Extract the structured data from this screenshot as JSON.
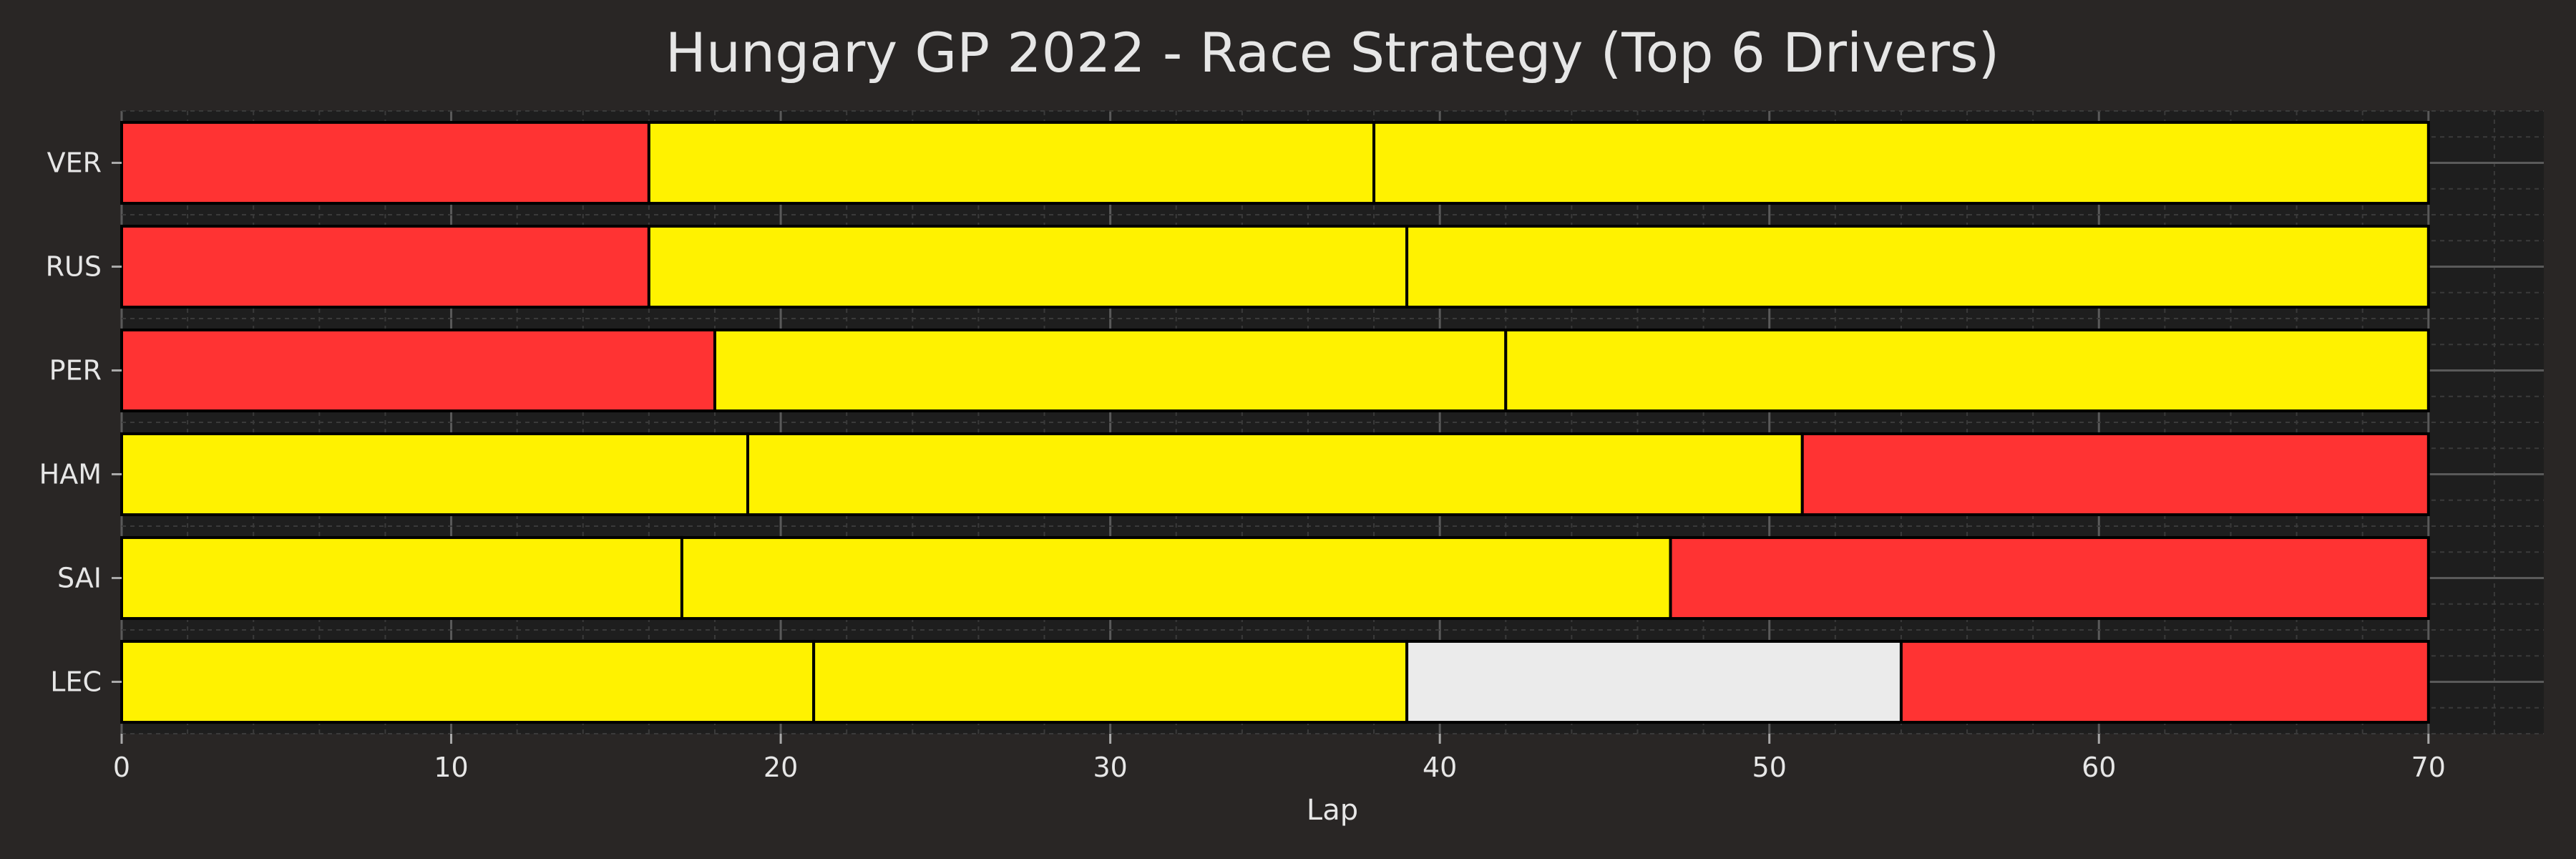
{
  "chart_data": {
    "type": "bar",
    "orientation": "horizontal-stacked",
    "title": "Hungary GP 2022 - Race Strategy (Top 6 Drivers)",
    "xlabel": "Lap",
    "ylabel": "",
    "xlim": [
      0,
      73.5
    ],
    "xticks": [
      0,
      10,
      20,
      30,
      40,
      50,
      60,
      70
    ],
    "grid": true,
    "compound_colors": {
      "SOFT": "#ff3333",
      "MEDIUM": "#fff200",
      "HARD": "#ebebeb"
    },
    "drivers": [
      {
        "driver": "VER",
        "stints": [
          {
            "compound": "SOFT",
            "start": 0,
            "laps": 16
          },
          {
            "compound": "MEDIUM",
            "start": 16,
            "laps": 22
          },
          {
            "compound": "MEDIUM",
            "start": 38,
            "laps": 32
          }
        ]
      },
      {
        "driver": "RUS",
        "stints": [
          {
            "compound": "SOFT",
            "start": 0,
            "laps": 16
          },
          {
            "compound": "MEDIUM",
            "start": 16,
            "laps": 23
          },
          {
            "compound": "MEDIUM",
            "start": 39,
            "laps": 31
          }
        ]
      },
      {
        "driver": "PER",
        "stints": [
          {
            "compound": "SOFT",
            "start": 0,
            "laps": 18
          },
          {
            "compound": "MEDIUM",
            "start": 18,
            "laps": 24
          },
          {
            "compound": "MEDIUM",
            "start": 42,
            "laps": 28
          }
        ]
      },
      {
        "driver": "HAM",
        "stints": [
          {
            "compound": "MEDIUM",
            "start": 0,
            "laps": 19
          },
          {
            "compound": "MEDIUM",
            "start": 19,
            "laps": 32
          },
          {
            "compound": "SOFT",
            "start": 51,
            "laps": 19
          }
        ]
      },
      {
        "driver": "SAI",
        "stints": [
          {
            "compound": "MEDIUM",
            "start": 0,
            "laps": 17
          },
          {
            "compound": "MEDIUM",
            "start": 17,
            "laps": 30
          },
          {
            "compound": "SOFT",
            "start": 47,
            "laps": 23
          }
        ]
      },
      {
        "driver": "LEC",
        "stints": [
          {
            "compound": "MEDIUM",
            "start": 0,
            "laps": 21
          },
          {
            "compound": "MEDIUM",
            "start": 21,
            "laps": 18
          },
          {
            "compound": "HARD",
            "start": 39,
            "laps": 15
          },
          {
            "compound": "SOFT",
            "start": 54,
            "laps": 16
          }
        ]
      }
    ]
  }
}
